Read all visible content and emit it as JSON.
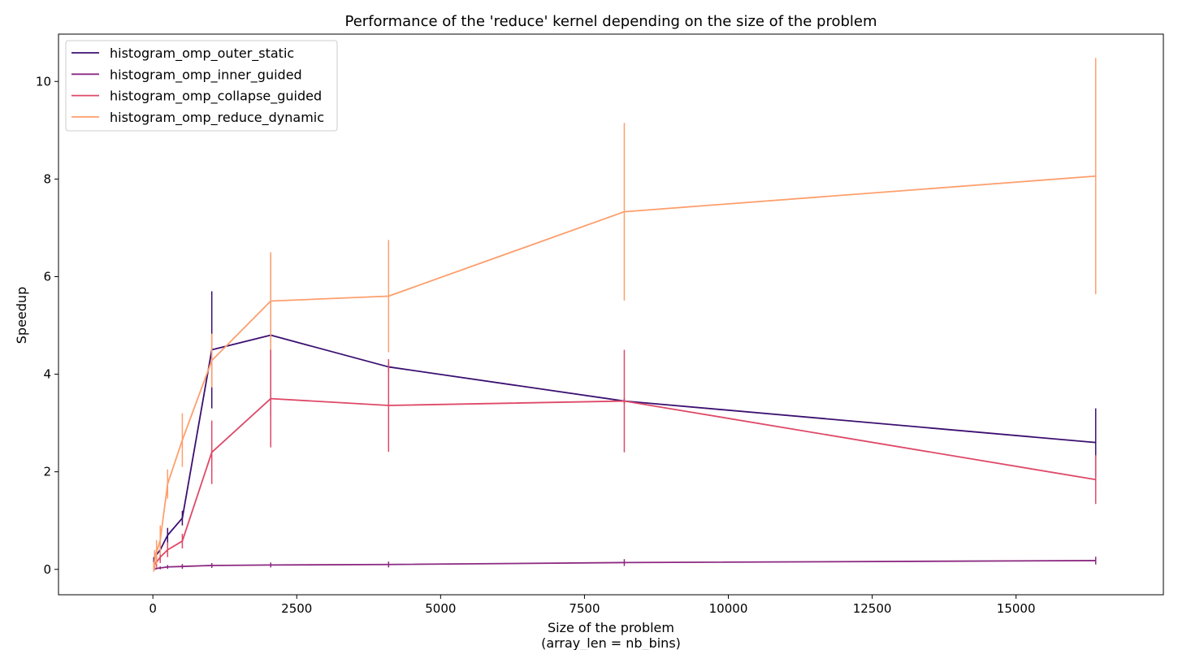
{
  "chart_data": {
    "type": "line",
    "title": "Performance of the 'reduce' kernel depending on the size of the problem",
    "xlabel": "Size of the problem",
    "xlabel_line2": "(array_len = nb_bins)",
    "ylabel": "Speedup",
    "xlim": [
      -1640,
      17560
    ],
    "ylim": [
      -0.52,
      10.97
    ],
    "xticks": [
      0,
      2500,
      5000,
      7500,
      10000,
      12500,
      15000
    ],
    "xtick_labels": [
      "0",
      "2500",
      "5000",
      "7500",
      "10000",
      "12500",
      "15000"
    ],
    "yticks": [
      0,
      2,
      4,
      6,
      8,
      10
    ],
    "ytick_labels": [
      "0",
      "2",
      "4",
      "6",
      "8",
      "10"
    ],
    "grid": false,
    "legend_position": "top-left",
    "x": [
      16,
      32,
      64,
      128,
      256,
      512,
      1024,
      2048,
      4096,
      8192,
      16384
    ],
    "series": [
      {
        "name": "histogram_omp_outer_static",
        "color": "#3b0f70",
        "values": [
          0.15,
          0.25,
          0.3,
          0.4,
          0.7,
          1.05,
          4.5,
          4.8,
          4.15,
          3.45,
          2.6
        ],
        "errors": [
          0.1,
          0.1,
          0.1,
          0.12,
          0.15,
          0.15,
          1.2,
          1.65,
          0.1,
          0.05,
          0.7
        ]
      },
      {
        "name": "histogram_omp_inner_guided",
        "color": "#8c2981",
        "values": [
          0.0,
          0.01,
          0.02,
          0.03,
          0.05,
          0.06,
          0.08,
          0.09,
          0.1,
          0.14,
          0.18
        ],
        "errors": [
          0.02,
          0.02,
          0.02,
          0.03,
          0.04,
          0.05,
          0.05,
          0.05,
          0.06,
          0.07,
          0.08
        ]
      },
      {
        "name": "histogram_omp_collapse_guided",
        "color": "#de4968",
        "values": [
          0.05,
          0.1,
          0.15,
          0.25,
          0.4,
          0.58,
          2.4,
          3.5,
          3.36,
          3.45,
          1.84
        ],
        "errors": [
          0.05,
          0.08,
          0.1,
          0.12,
          0.15,
          0.15,
          0.65,
          1.0,
          0.95,
          1.05,
          0.5
        ]
      },
      {
        "name": "histogram_omp_reduce_dynamic",
        "color": "#fe9f6d",
        "values": [
          0.05,
          0.2,
          0.35,
          0.6,
          1.75,
          2.65,
          4.28,
          5.5,
          5.6,
          7.33,
          8.06
        ],
        "errors": [
          0.1,
          0.2,
          0.25,
          0.3,
          0.3,
          0.55,
          0.55,
          1.0,
          1.15,
          1.82,
          2.42
        ]
      }
    ]
  }
}
